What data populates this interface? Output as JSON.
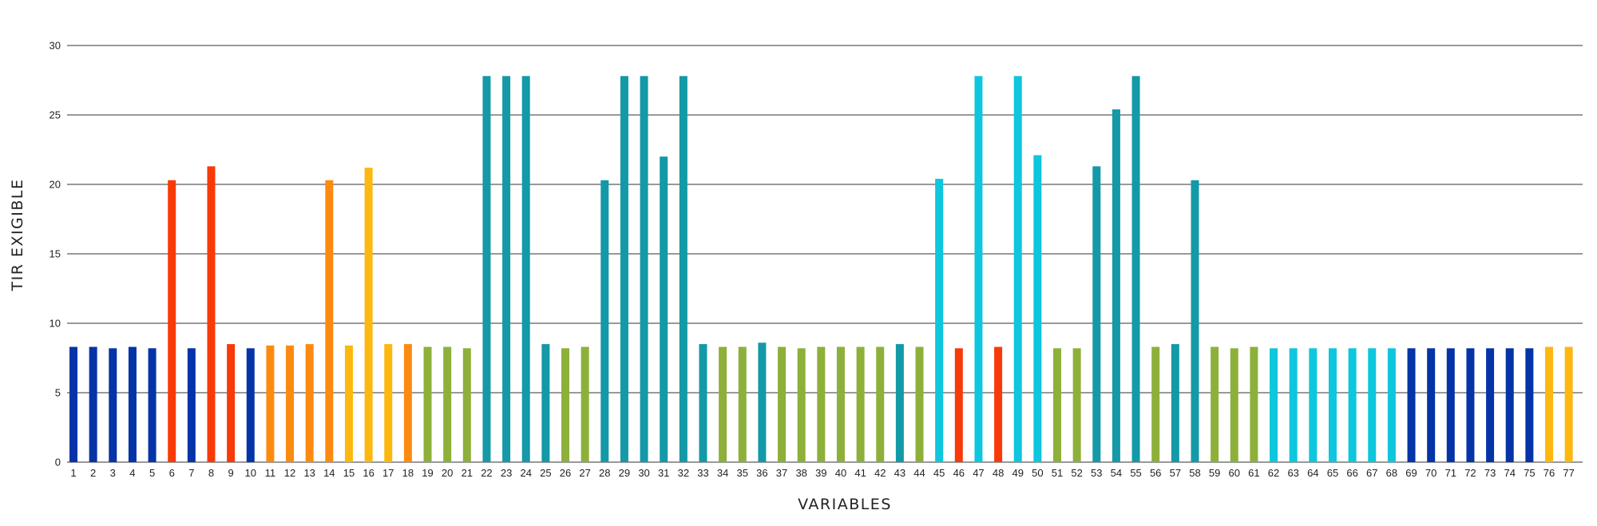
{
  "chart_data": {
    "type": "bar",
    "title": "",
    "xlabel": "VARIABLES",
    "ylabel": "TIR EXIGIBLE",
    "ylim": [
      0,
      30
    ],
    "yticks": [
      0,
      5,
      10,
      15,
      20,
      25,
      30
    ],
    "grid": true,
    "legend": "none",
    "colors": {
      "navy": "#0533a8",
      "red": "#f83a08",
      "orange": "#fd8a10",
      "yellow": "#feb70e",
      "green": "#8db03a",
      "teal": "#1399a7",
      "cyan": "#0ec6dd"
    },
    "categories": [
      "1",
      "2",
      "3",
      "4",
      "5",
      "6",
      "7",
      "8",
      "9",
      "10",
      "11",
      "12",
      "13",
      "14",
      "15",
      "16",
      "17",
      "18",
      "19",
      "20",
      "21",
      "22",
      "23",
      "24",
      "25",
      "26",
      "27",
      "28",
      "29",
      "30",
      "31",
      "32",
      "33",
      "34",
      "35",
      "36",
      "37",
      "38",
      "39",
      "40",
      "41",
      "42",
      "43",
      "44",
      "45",
      "46",
      "47",
      "48",
      "49",
      "50",
      "51",
      "52",
      "53",
      "54",
      "55",
      "56",
      "57",
      "58",
      "59",
      "60",
      "61",
      "62",
      "63",
      "64",
      "65",
      "66",
      "67",
      "68",
      "69",
      "70",
      "71",
      "72",
      "73",
      "74",
      "75",
      "76",
      "77"
    ],
    "values": [
      8.3,
      8.3,
      8.2,
      8.3,
      8.2,
      20.3,
      8.2,
      21.3,
      8.5,
      8.2,
      8.4,
      8.4,
      8.5,
      20.3,
      8.4,
      21.2,
      8.5,
      8.5,
      8.3,
      8.3,
      8.2,
      27.8,
      27.8,
      27.8,
      8.5,
      8.2,
      8.3,
      20.3,
      27.8,
      27.8,
      22.0,
      27.8,
      8.5,
      8.3,
      8.3,
      8.6,
      8.3,
      8.2,
      8.3,
      8.3,
      8.3,
      8.3,
      8.5,
      8.3,
      20.4,
      8.2,
      27.8,
      8.3,
      27.8,
      22.1,
      8.2,
      8.2,
      21.3,
      25.4,
      27.8,
      8.3,
      8.5,
      20.3,
      8.3,
      8.2,
      8.3,
      8.2,
      8.2,
      8.2,
      8.2,
      8.2,
      8.2,
      8.2,
      8.2,
      8.2,
      8.2,
      8.2,
      8.2,
      8.2,
      8.2,
      8.3,
      8.3
    ],
    "bar_colors": [
      "navy",
      "navy",
      "navy",
      "navy",
      "navy",
      "red",
      "navy",
      "red",
      "red",
      "navy",
      "orange",
      "orange",
      "orange",
      "orange",
      "yellow",
      "yellow",
      "yellow",
      "orange",
      "green",
      "green",
      "green",
      "teal",
      "teal",
      "teal",
      "teal",
      "green",
      "green",
      "teal",
      "teal",
      "teal",
      "teal",
      "teal",
      "teal",
      "green",
      "green",
      "teal",
      "green",
      "green",
      "green",
      "green",
      "green",
      "green",
      "teal",
      "green",
      "cyan",
      "red",
      "cyan",
      "red",
      "cyan",
      "cyan",
      "green",
      "green",
      "teal",
      "teal",
      "teal",
      "green",
      "teal",
      "teal",
      "green",
      "green",
      "green",
      "cyan",
      "cyan",
      "cyan",
      "cyan",
      "cyan",
      "cyan",
      "cyan",
      "navy",
      "navy",
      "navy",
      "navy",
      "navy",
      "navy",
      "navy",
      "yellow",
      "yellow"
    ]
  }
}
